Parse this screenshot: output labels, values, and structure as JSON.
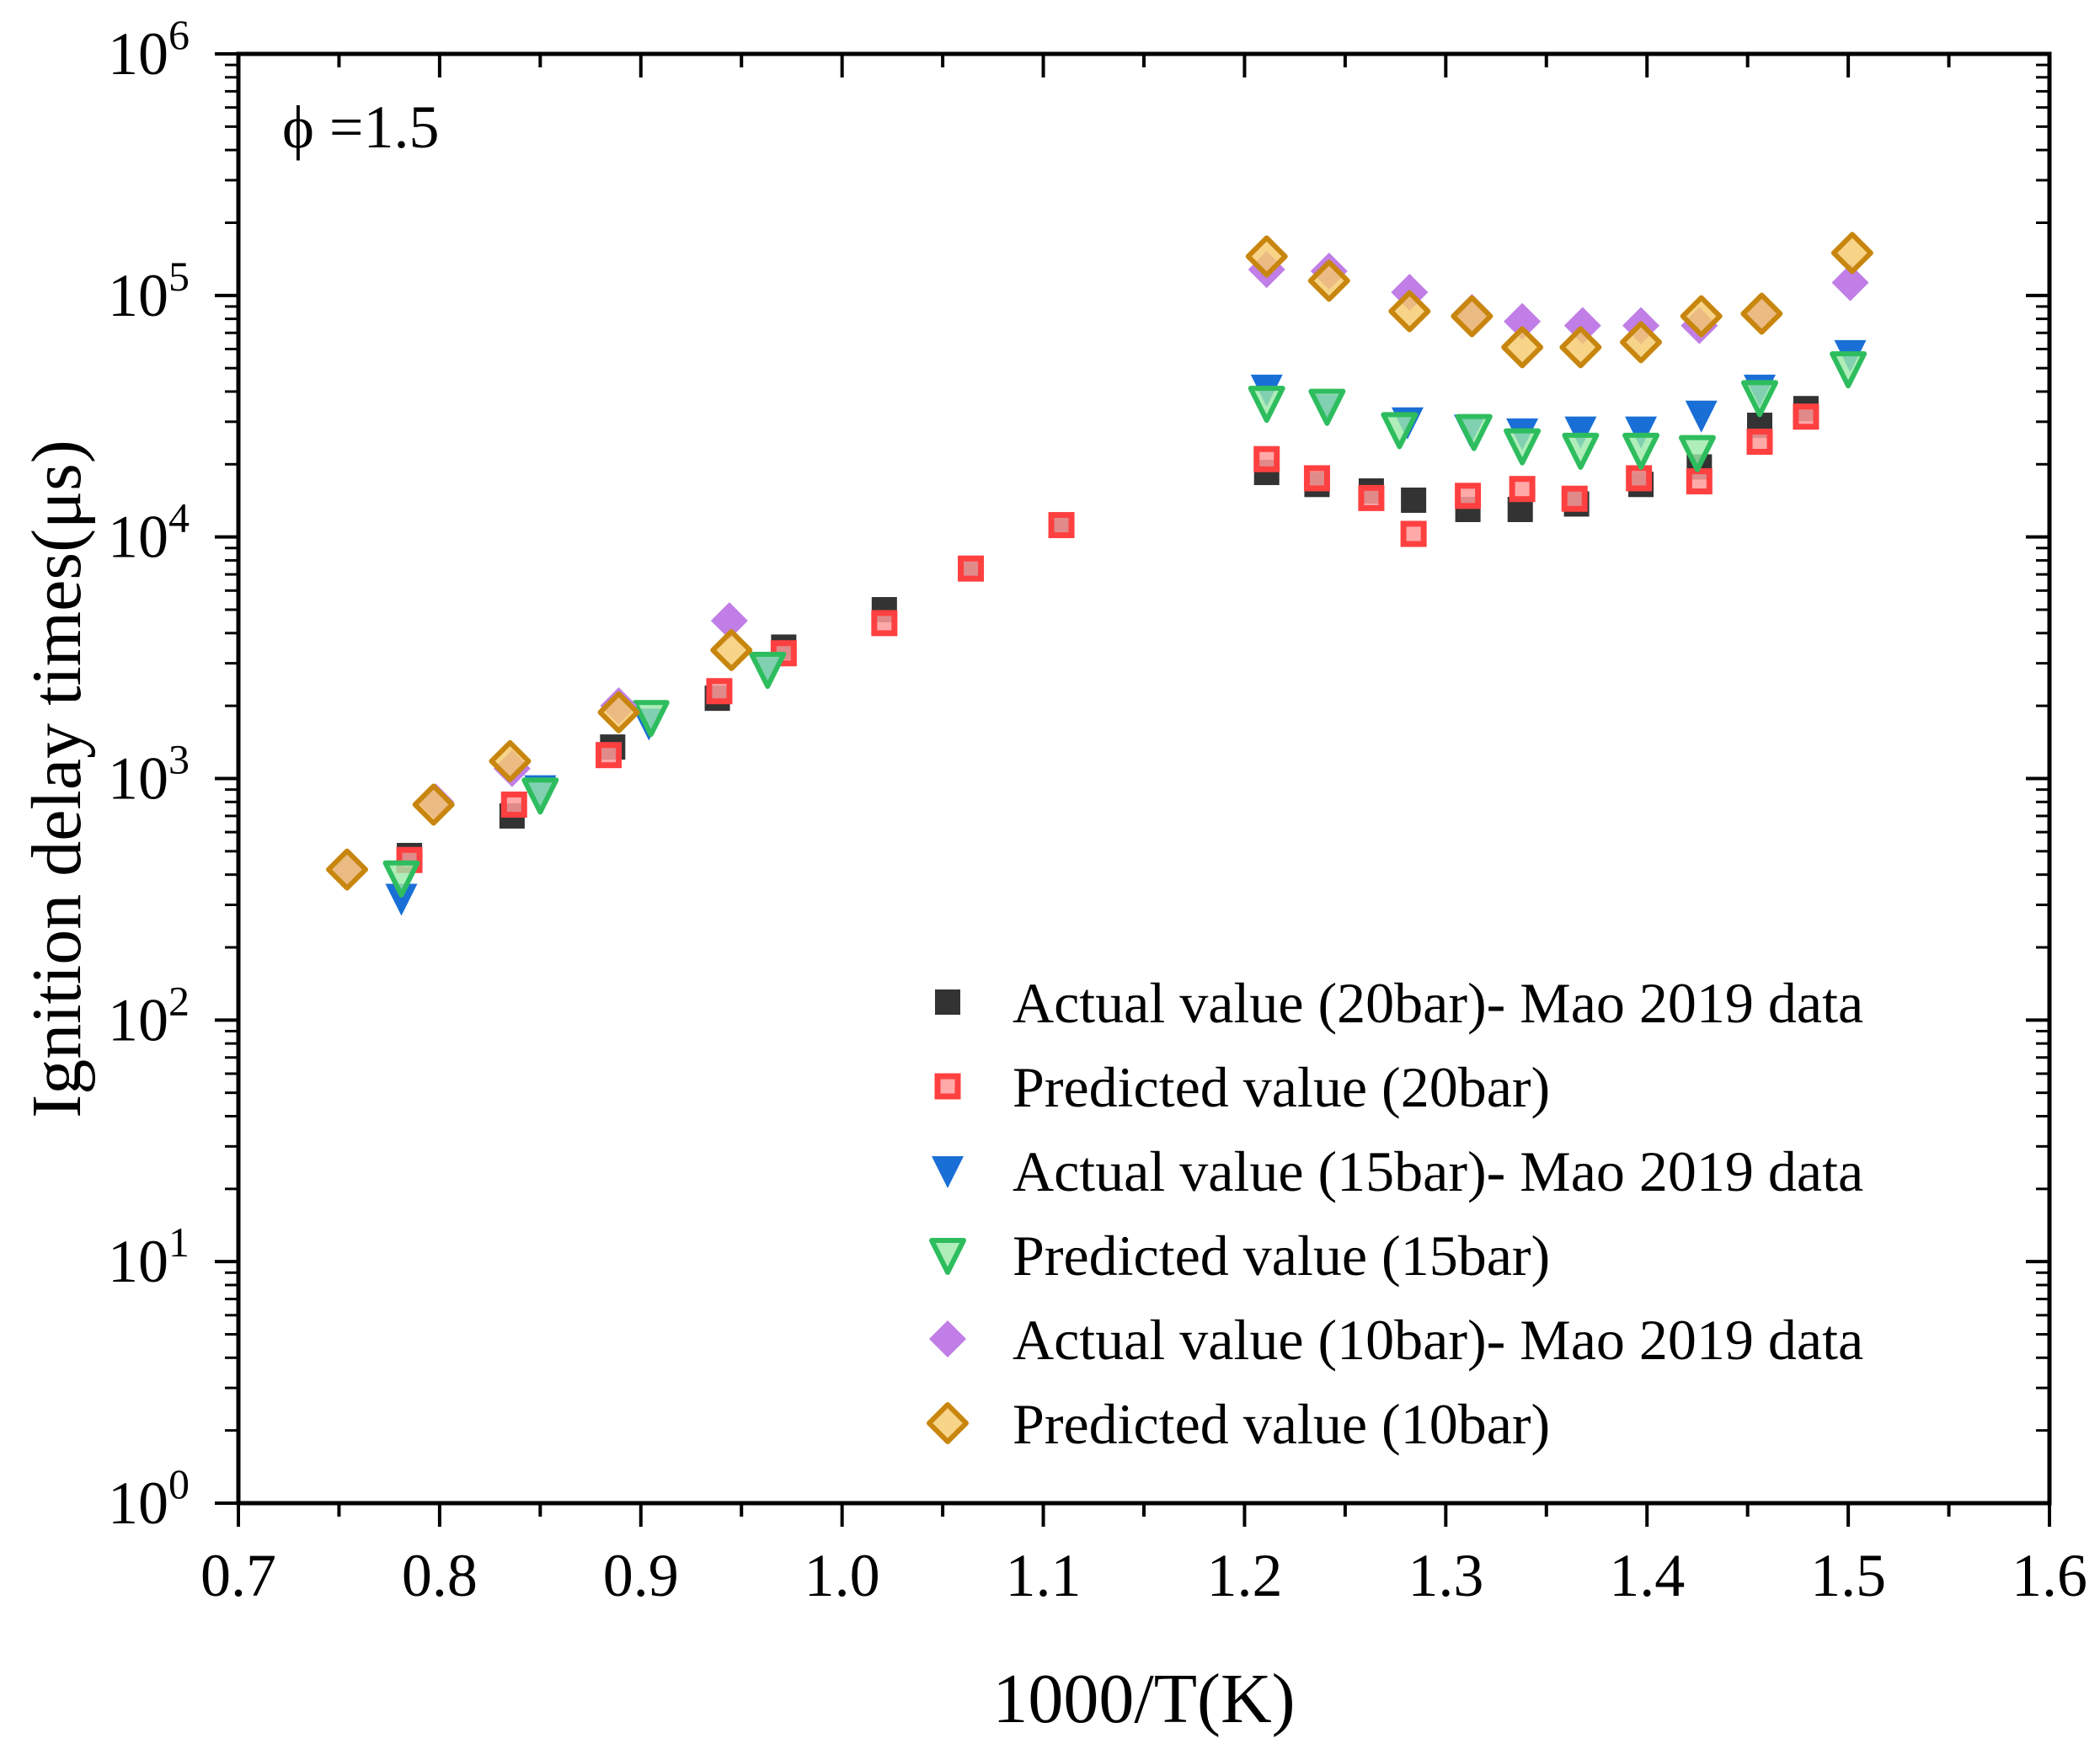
{
  "chart_data": {
    "type": "scatter",
    "title": "",
    "annotation": "ϕ =1.5",
    "xlabel": "1000/T(K)",
    "ylabel": "Ignition delay times(μs)",
    "xlim": [
      0.7,
      1.6
    ],
    "ylim": [
      1,
      1000000
    ],
    "yscale": "log",
    "x_ticks": [
      0.7,
      0.8,
      0.9,
      1.0,
      1.1,
      1.2,
      1.3,
      1.4,
      1.5,
      1.6
    ],
    "x_tick_labels": [
      "0.7",
      "0.8",
      "0.9",
      "1.0",
      "1.1",
      "1.2",
      "1.3",
      "1.4",
      "1.5",
      "1.6"
    ],
    "y_ticks": [
      {
        "value": 1,
        "base": "10",
        "exp": "0"
      },
      {
        "value": 10,
        "base": "10",
        "exp": "1"
      },
      {
        "value": 100,
        "base": "10",
        "exp": "2"
      },
      {
        "value": 1000,
        "base": "10",
        "exp": "3"
      },
      {
        "value": 10000,
        "base": "10",
        "exp": "4"
      },
      {
        "value": 100000,
        "base": "10",
        "exp": "5"
      },
      {
        "value": 1000000,
        "base": "10",
        "exp": "6"
      }
    ],
    "legend_position": "bottom-right",
    "series": [
      {
        "name": "Actual value (20bar)- Mao 2019 data",
        "marker": "square-filled",
        "color": "#333333",
        "x": [
          0.785,
          0.836,
          0.886,
          0.938,
          0.971,
          1.021,
          1.064,
          1.109,
          1.211,
          1.236,
          1.263,
          1.284,
          1.311,
          1.337,
          1.365,
          1.397,
          1.426,
          1.456,
          1.479
        ],
        "y": [
          480,
          700,
          1350,
          2150,
          3500,
          5000,
          7400,
          11200,
          18500,
          16500,
          15500,
          14200,
          13000,
          13000,
          13700,
          16500,
          19500,
          29000,
          34000
        ]
      },
      {
        "name": "Predicted value (20bar)",
        "marker": "square-open",
        "color": "#ff4040",
        "x": [
          0.785,
          0.837,
          0.884,
          0.939,
          0.971,
          1.021,
          1.064,
          1.109,
          1.211,
          1.236,
          1.263,
          1.284,
          1.311,
          1.338,
          1.364,
          1.396,
          1.426,
          1.456,
          1.479
        ],
        "y": [
          460,
          780,
          1250,
          2300,
          3300,
          4400,
          7400,
          11200,
          21000,
          17500,
          14500,
          10300,
          14800,
          15800,
          14400,
          17500,
          17000,
          24800,
          31500
        ]
      },
      {
        "name": "Actual value (15bar)- Mao 2019 data",
        "marker": "triangle-down-filled",
        "color": "#1a6fd6",
        "x": [
          0.781,
          0.85,
          0.904,
          0.963,
          1.211,
          1.241,
          1.281,
          1.312,
          1.338,
          1.367,
          1.397,
          1.427,
          1.456,
          1.501
        ],
        "y": [
          320,
          900,
          1700,
          2900,
          41000,
          34000,
          30000,
          28000,
          27000,
          27500,
          27500,
          32000,
          41000,
          57000
        ]
      },
      {
        "name": "Predicted value (15bar)",
        "marker": "triangle-down-open",
        "color": "#2ebd5e",
        "x": [
          0.781,
          0.85,
          0.905,
          0.963,
          1.211,
          1.241,
          1.277,
          1.314,
          1.338,
          1.367,
          1.397,
          1.425,
          1.456,
          1.5
        ],
        "y": [
          390,
          860,
          1800,
          2850,
          36000,
          35000,
          28000,
          27500,
          24000,
          23000,
          23000,
          22500,
          38000,
          50000
        ]
      },
      {
        "name": "Actual value (10bar)- Mao 2019 data",
        "marker": "diamond-filled",
        "color": "#c07ee6",
        "x": [
          0.754,
          0.798,
          0.836,
          0.889,
          0.944,
          1.211,
          1.242,
          1.282,
          1.313,
          1.338,
          1.368,
          1.397,
          1.426,
          1.457,
          1.501
        ],
        "y": [
          420,
          800,
          1100,
          2000,
          4500,
          128000,
          126000,
          103000,
          85000,
          78000,
          75000,
          75000,
          75000,
          84000,
          113000
        ]
      },
      {
        "name": "Predicted value (10bar)",
        "marker": "diamond-open",
        "color": "#c8860f",
        "x": [
          0.754,
          0.797,
          0.835,
          0.889,
          0.945,
          1.211,
          1.242,
          1.282,
          1.313,
          1.338,
          1.367,
          1.397,
          1.427,
          1.457,
          1.502
        ],
        "y": [
          420,
          780,
          1180,
          1880,
          3400,
          145000,
          115000,
          86000,
          82000,
          61000,
          61000,
          64000,
          82000,
          84000,
          150000
        ]
      }
    ]
  }
}
